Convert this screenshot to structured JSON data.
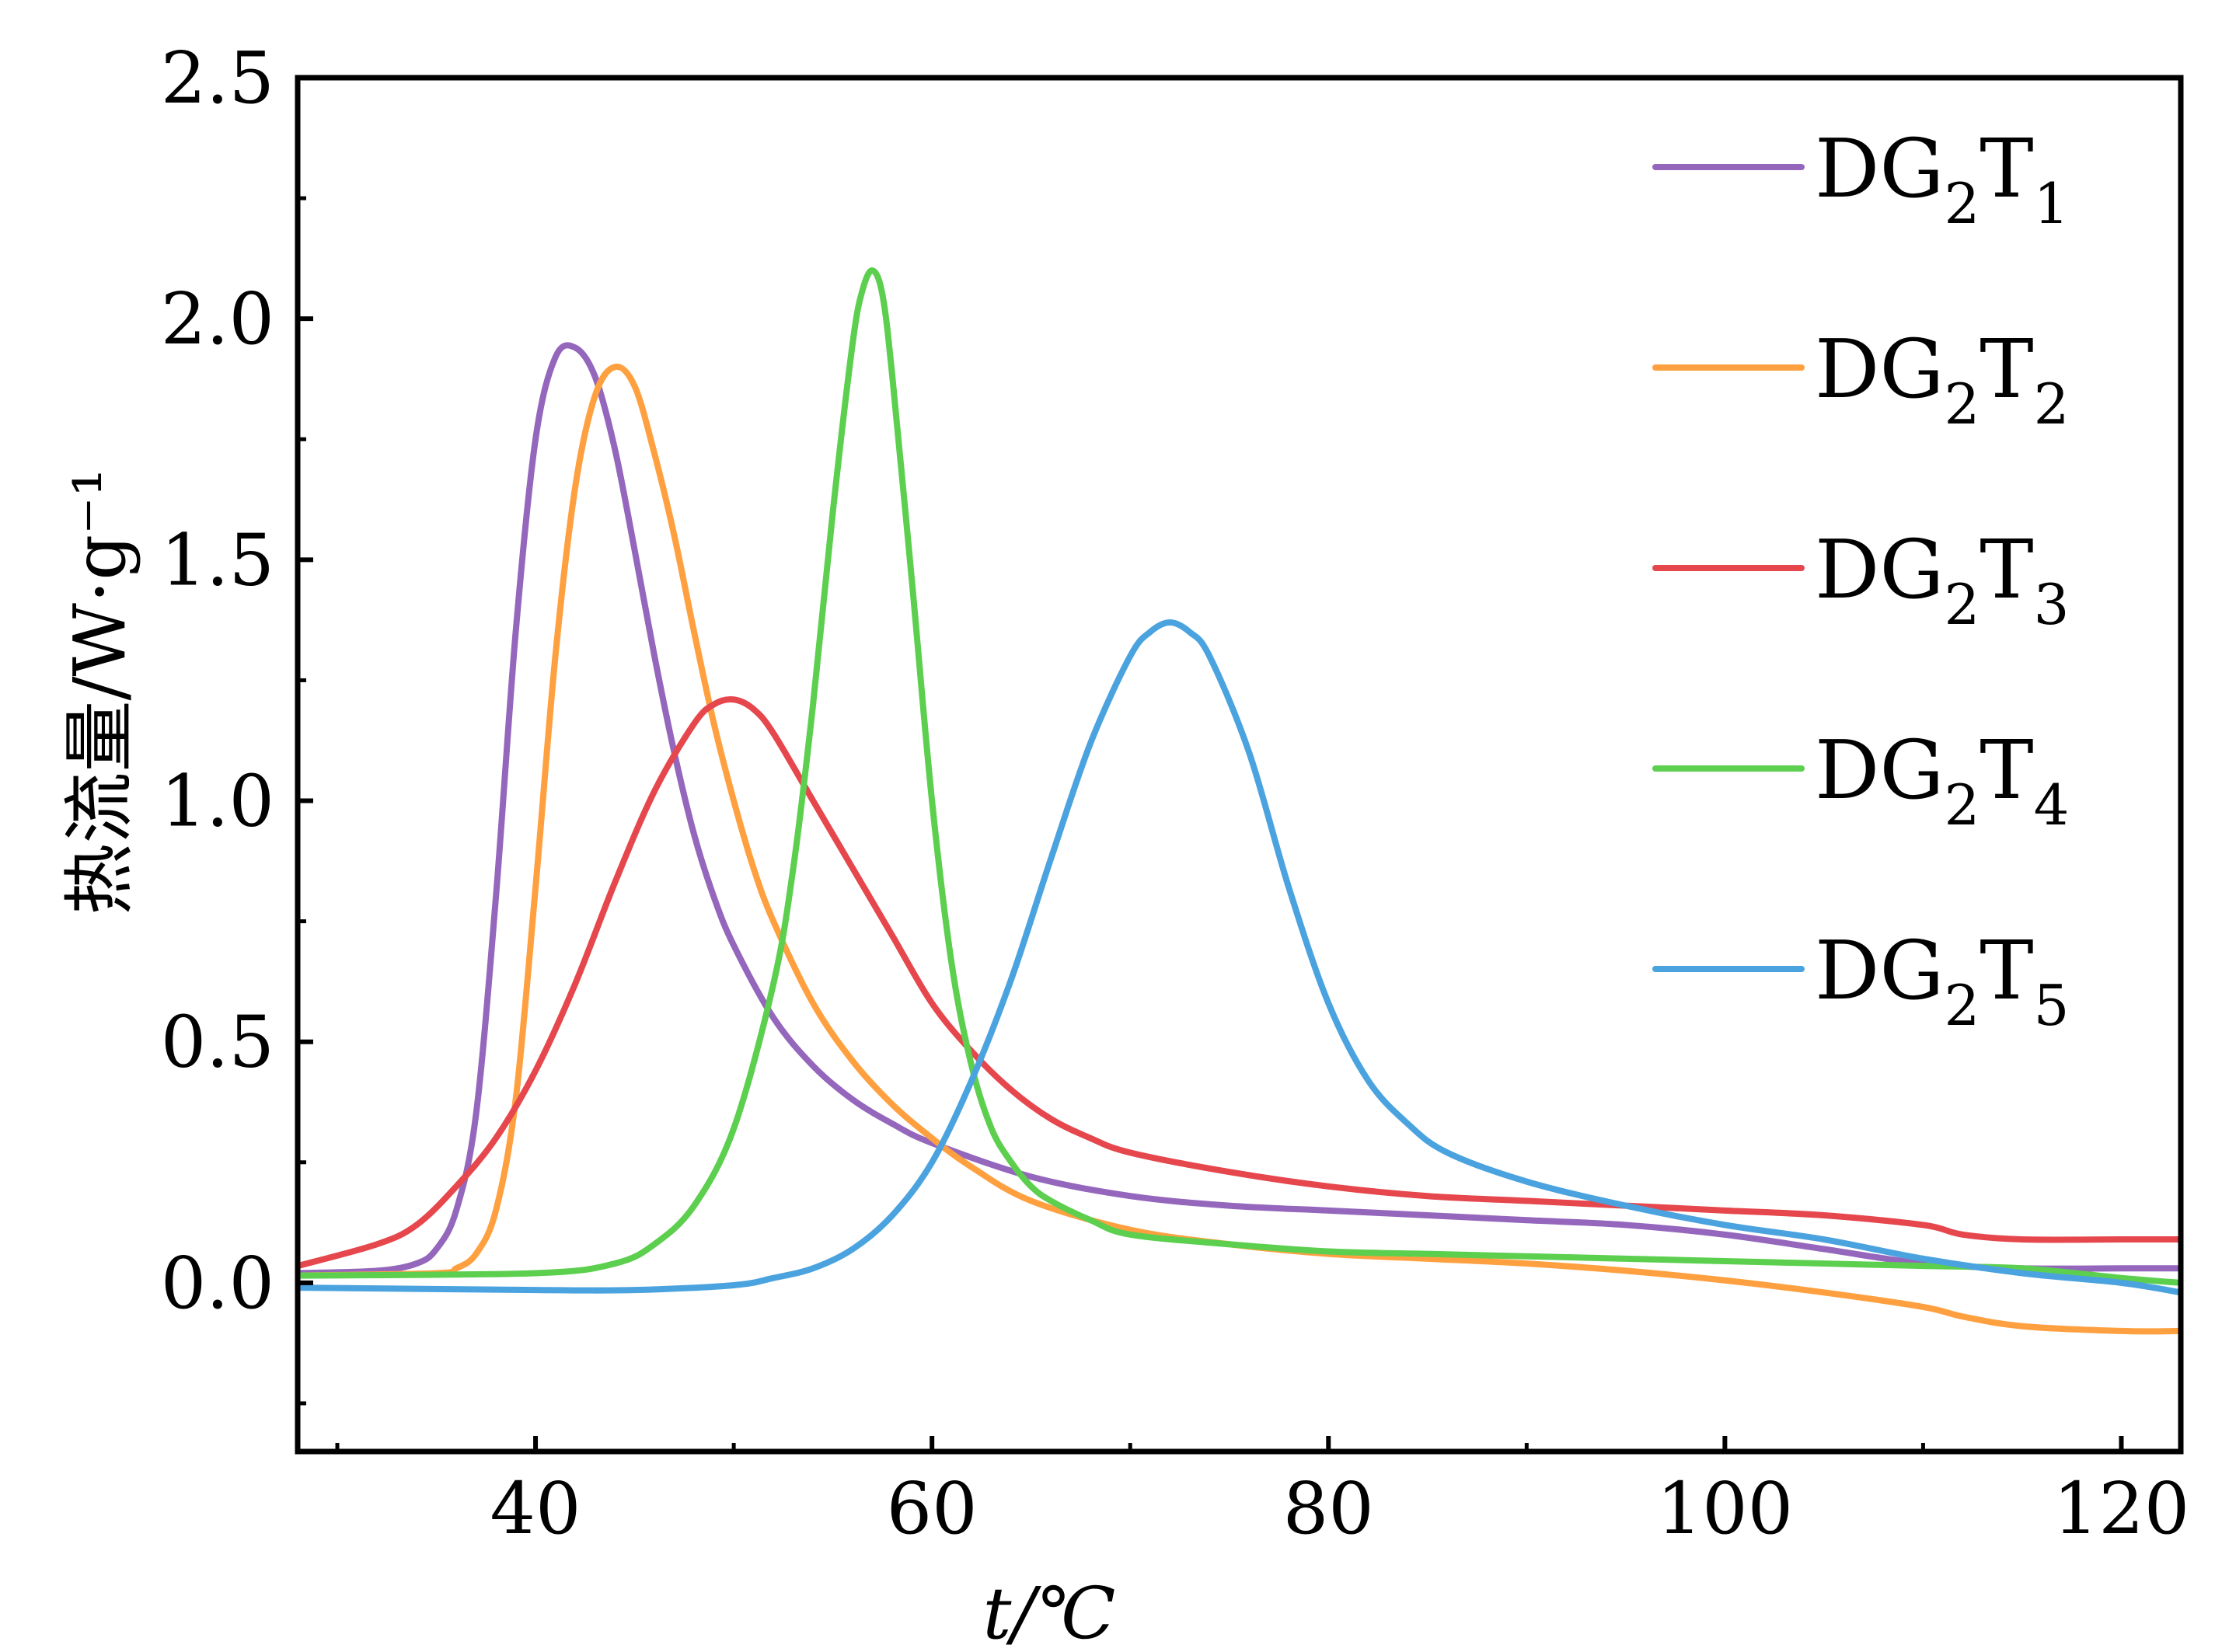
{
  "chart_data": {
    "type": "line",
    "xlabel": "t/℃",
    "ylabel": "热流量/W·g⁻¹",
    "xlim": [
      28,
      123
    ],
    "ylim": [
      -0.35,
      2.5
    ],
    "x_ticks": [
      40,
      60,
      80,
      100,
      120
    ],
    "y_ticks": [
      0.0,
      0.5,
      1.0,
      1.5,
      2.0,
      2.5
    ],
    "x_tick_labels": [
      "40",
      "60",
      "80",
      "100",
      "120"
    ],
    "y_tick_labels": [
      "0.0",
      "0.5",
      "1.0",
      "1.5",
      "2.0",
      "2.5"
    ],
    "legend_position": "top-right",
    "grid": false,
    "series": [
      {
        "name": "DG2T1",
        "label_main": "DG",
        "label_sub1": "2",
        "label_t": "T",
        "label_sub2": "1",
        "color": "#9467bd",
        "x": [
          28,
          32,
          34,
          35,
          36,
          37,
          38,
          39,
          40,
          41,
          42,
          43,
          44,
          45,
          46,
          47,
          48,
          49,
          50,
          52,
          54,
          56,
          58,
          60,
          65,
          70,
          75,
          80,
          85,
          90,
          95,
          100,
          105,
          110,
          115,
          120,
          123
        ],
        "y": [
          0.02,
          0.025,
          0.04,
          0.07,
          0.15,
          0.35,
          0.8,
          1.35,
          1.75,
          1.92,
          1.94,
          1.88,
          1.73,
          1.52,
          1.3,
          1.1,
          0.93,
          0.8,
          0.7,
          0.55,
          0.45,
          0.38,
          0.33,
          0.29,
          0.22,
          0.18,
          0.16,
          0.15,
          0.14,
          0.13,
          0.12,
          0.1,
          0.07,
          0.04,
          0.03,
          0.03,
          0.03
        ]
      },
      {
        "name": "DG2T2",
        "label_main": "DG",
        "label_sub1": "2",
        "label_t": "T",
        "label_sub2": "2",
        "color": "#ffa040",
        "x": [
          28,
          35,
          36,
          37,
          38,
          39,
          40,
          41,
          42,
          43,
          44,
          45,
          46,
          47,
          48,
          49,
          50,
          51,
          52,
          54,
          56,
          58,
          60,
          62,
          65,
          70,
          75,
          80,
          85,
          90,
          95,
          100,
          105,
          110,
          112,
          115,
          120,
          123
        ],
        "y": [
          0.015,
          0.02,
          0.03,
          0.06,
          0.15,
          0.38,
          0.82,
          1.3,
          1.65,
          1.84,
          1.9,
          1.86,
          1.72,
          1.55,
          1.35,
          1.16,
          1.0,
          0.86,
          0.75,
          0.58,
          0.46,
          0.37,
          0.3,
          0.24,
          0.17,
          0.11,
          0.08,
          0.06,
          0.05,
          0.04,
          0.025,
          0.005,
          -0.02,
          -0.05,
          -0.07,
          -0.09,
          -0.1,
          -0.1
        ]
      },
      {
        "name": "DG2T3",
        "label_main": "DG",
        "label_sub1": "2",
        "label_t": "T",
        "label_sub2": "3",
        "color": "#e5474d",
        "x": [
          28,
          32,
          34,
          36,
          38,
          40,
          42,
          44,
          46,
          48,
          49,
          50,
          51,
          52,
          54,
          56,
          58,
          60,
          62,
          64,
          66,
          68,
          70,
          75,
          80,
          85,
          90,
          95,
          100,
          105,
          110,
          112,
          115,
          120,
          123
        ],
        "y": [
          0.035,
          0.08,
          0.12,
          0.2,
          0.3,
          0.44,
          0.62,
          0.83,
          1.02,
          1.16,
          1.2,
          1.21,
          1.19,
          1.14,
          1.0,
          0.86,
          0.72,
          0.58,
          0.48,
          0.4,
          0.34,
          0.3,
          0.27,
          0.23,
          0.2,
          0.18,
          0.17,
          0.16,
          0.15,
          0.14,
          0.12,
          0.1,
          0.09,
          0.09,
          0.09
        ]
      },
      {
        "name": "DG2T4",
        "label_main": "DG",
        "label_sub1": "2",
        "label_t": "T",
        "label_sub2": "4",
        "color": "#5ccf4f",
        "x": [
          28,
          40,
          44,
          46,
          48,
          50,
          52,
          53,
          54,
          55,
          56,
          56.5,
          57,
          57.5,
          58,
          59,
          60,
          61,
          62,
          63,
          64,
          65,
          66,
          68,
          70,
          75,
          80,
          85,
          90,
          95,
          100,
          105,
          110,
          115,
          120,
          123
        ],
        "y": [
          0.015,
          0.02,
          0.04,
          0.08,
          0.16,
          0.32,
          0.62,
          0.86,
          1.2,
          1.6,
          1.95,
          2.06,
          2.1,
          2.05,
          1.88,
          1.45,
          1.0,
          0.66,
          0.45,
          0.32,
          0.25,
          0.2,
          0.17,
          0.13,
          0.1,
          0.08,
          0.065,
          0.06,
          0.055,
          0.05,
          0.045,
          0.04,
          0.035,
          0.03,
          0.01,
          0.0
        ]
      },
      {
        "name": "DG2T5",
        "label_main": "DG",
        "label_sub1": "2",
        "label_t": "T",
        "label_sub2": "5",
        "color": "#4aa3df",
        "x": [
          28,
          40,
          45,
          50,
          52,
          54,
          56,
          58,
          60,
          62,
          64,
          66,
          68,
          70,
          71,
          72,
          73,
          74,
          76,
          78,
          80,
          82,
          84,
          86,
          90,
          95,
          100,
          105,
          110,
          115,
          120,
          123
        ],
        "y": [
          -0.01,
          -0.015,
          -0.015,
          -0.005,
          0.01,
          0.03,
          0.07,
          0.14,
          0.25,
          0.42,
          0.63,
          0.88,
          1.12,
          1.3,
          1.35,
          1.37,
          1.35,
          1.3,
          1.1,
          0.82,
          0.58,
          0.42,
          0.33,
          0.27,
          0.21,
          0.16,
          0.12,
          0.09,
          0.05,
          0.02,
          0.0,
          -0.02
        ]
      }
    ]
  }
}
